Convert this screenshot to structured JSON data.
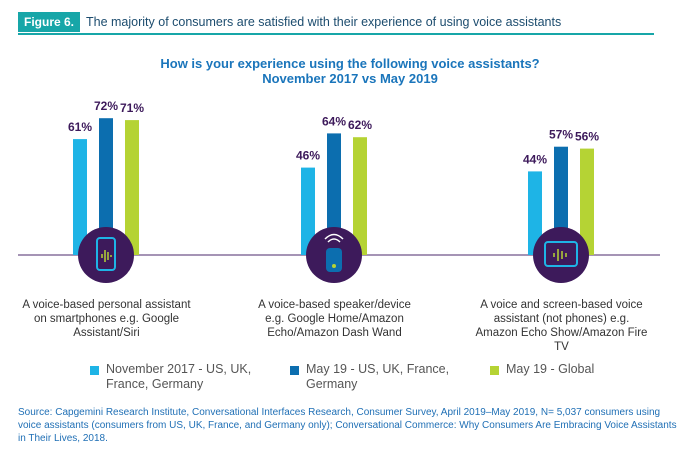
{
  "figure_label": "Figure 6.",
  "header_title": "The majority of consumers are satisfied with their experience of using voice assistants",
  "chart_data": {
    "type": "bar",
    "title": "How is your experience using the following voice assistants?",
    "subtitle": "November 2017 vs May 2019",
    "categories": [
      "A voice-based personal assistant on smartphones e.g. Google Assistant/Siri",
      "A voice-based speaker/device e.g.  Google Home/Amazon Echo/Amazon Dash Wand",
      "A voice and screen-based voice assistant (not phones) e.g. Amazon Echo Show/Amazon Fire TV"
    ],
    "series": [
      {
        "name": "November 2017 - US, UK, France, Germany",
        "color": "#1eb4e6",
        "values": [
          61,
          46,
          44
        ],
        "value_labels": [
          "61%",
          "46%",
          "44%"
        ]
      },
      {
        "name": "May 19 - US, UK, France, Germany",
        "color": "#0c6eaf",
        "values": [
          72,
          64,
          57
        ],
        "value_labels": [
          "72%",
          "64%",
          "57%"
        ]
      },
      {
        "name": "May 19 - Global",
        "color": "#b5d334",
        "values": [
          71,
          62,
          56
        ],
        "value_labels": [
          "71%",
          "62%",
          "56%"
        ]
      }
    ]
  },
  "source": "Source: Capgemini Research Institute, Conversational Interfaces Research, Consumer Survey, April 2019–May 2019, N= 5,037 consumers using voice assistants (consumers from US, UK, France, and Germany only); Conversational Commerce: Why Consumers Are Embracing Voice Assistants in Their Lives, 2018."
}
